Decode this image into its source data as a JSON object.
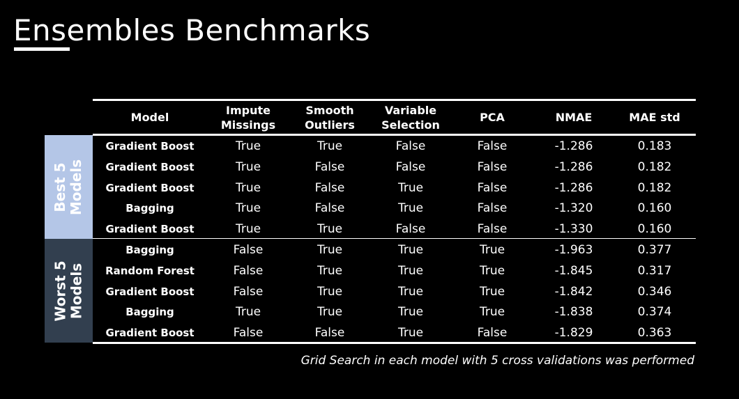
{
  "title": "Ensembles Benchmarks",
  "colors": {
    "background": "#000000",
    "text": "#ffffff",
    "best_group": "#b4c6e7",
    "worst_group": "#323f4f"
  },
  "table": {
    "headers": {
      "model": "Model",
      "impute_1": "Impute",
      "impute_2": "Missings",
      "smooth_1": "Smooth",
      "smooth_2": "Outliers",
      "variable_1": "Variable",
      "variable_2": "Selection",
      "pca": "PCA",
      "nmae": "NMAE",
      "mae_std": "MAE std"
    },
    "groups": {
      "best_1": "Best 5",
      "best_2": "Models",
      "worst_1": "Worst 5",
      "worst_2": "Models"
    },
    "rows": [
      [
        "Gradient Boost",
        "True",
        "True",
        "False",
        "False",
        "-1.286",
        "0.183"
      ],
      [
        "Gradient Boost",
        "True",
        "False",
        "False",
        "False",
        "-1.286",
        "0.182"
      ],
      [
        "Gradient Boost",
        "True",
        "False",
        "True",
        "False",
        "-1.286",
        "0.182"
      ],
      [
        "Bagging",
        "True",
        "False",
        "True",
        "False",
        "-1.320",
        "0.160"
      ],
      [
        "Gradient Boost",
        "True",
        "True",
        "False",
        "False",
        "-1.330",
        "0.160"
      ],
      [
        "Bagging",
        "False",
        "True",
        "True",
        "True",
        "-1.963",
        "0.377"
      ],
      [
        "Random Forest",
        "False",
        "True",
        "True",
        "True",
        "-1.845",
        "0.317"
      ],
      [
        "Gradient Boost",
        "False",
        "True",
        "True",
        "True",
        "-1.842",
        "0.346"
      ],
      [
        "Bagging",
        "True",
        "True",
        "True",
        "True",
        "-1.838",
        "0.374"
      ],
      [
        "Gradient Boost",
        "False",
        "False",
        "True",
        "False",
        "-1.829",
        "0.363"
      ]
    ]
  },
  "footnote": "Grid Search in each model with 5 cross validations was performed"
}
